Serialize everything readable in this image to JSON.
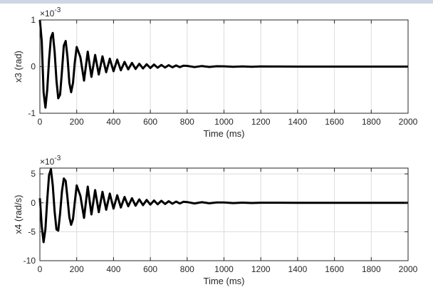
{
  "colors": {
    "trace": "#000000",
    "grid": "#dcdcdc",
    "axis": "#262626",
    "background": "#ffffff"
  },
  "chart_data": [
    {
      "type": "line",
      "ylabel": "x3 (rad)",
      "xlabel": "Time (ms)",
      "exponent": "×10",
      "exponent_power": "-3",
      "xlim": [
        0,
        2000
      ],
      "ylim": [
        -1,
        1
      ],
      "grid": true,
      "xticks": [
        0,
        200,
        400,
        600,
        800,
        1000,
        1200,
        1400,
        1600,
        1800,
        2000
      ],
      "yticks": [
        -1,
        0,
        1
      ],
      "xtick_labels": [
        "0",
        "200",
        "400",
        "600",
        "800",
        "1000",
        "1200",
        "1400",
        "1600",
        "1800",
        "2000"
      ],
      "ytick_labels": [
        "-1",
        "0",
        "1"
      ],
      "series": [
        {
          "x": [
            0,
            10,
            20,
            30,
            40,
            50,
            60,
            70,
            80,
            90,
            100,
            110,
            120,
            130,
            140,
            150,
            160,
            170,
            180,
            190,
            200,
            220,
            240,
            260,
            280,
            300,
            320,
            340,
            360,
            380,
            400,
            420,
            440,
            460,
            480,
            500,
            520,
            540,
            560,
            580,
            600,
            620,
            640,
            660,
            680,
            700,
            720,
            740,
            760,
            780,
            800,
            840,
            880,
            920,
            960,
            1000,
            1050,
            1100,
            1150,
            1200,
            1300,
            1400,
            1600,
            1800,
            2000
          ],
          "y": [
            1.0,
            0.55,
            -0.55,
            -0.88,
            -0.5,
            0.15,
            0.62,
            0.72,
            0.32,
            -0.3,
            -0.68,
            -0.6,
            -0.1,
            0.45,
            0.55,
            0.2,
            -0.35,
            -0.55,
            -0.35,
            0.1,
            0.42,
            0.2,
            -0.3,
            0.32,
            -0.22,
            0.25,
            -0.17,
            0.22,
            -0.12,
            0.17,
            -0.1,
            0.15,
            -0.08,
            0.1,
            -0.06,
            0.08,
            -0.05,
            0.06,
            -0.04,
            0.05,
            -0.03,
            0.045,
            -0.025,
            0.035,
            -0.02,
            0.03,
            -0.015,
            0.025,
            -0.012,
            0.02,
            0.015,
            -0.01,
            0.012,
            -0.008,
            0.008,
            0.006,
            -0.005,
            0.004,
            -0.003,
            0.003,
            0.002,
            0.0,
            0.0,
            0.0,
            0.0
          ]
        }
      ]
    },
    {
      "type": "line",
      "ylabel": "x4 (rad/s)",
      "xlabel": "Time (ms)",
      "exponent": "×10",
      "exponent_power": "-3",
      "xlim": [
        0,
        2000
      ],
      "ylim": [
        -10,
        6
      ],
      "grid": true,
      "xticks": [
        0,
        200,
        400,
        600,
        800,
        1000,
        1200,
        1400,
        1600,
        1800,
        2000
      ],
      "yticks": [
        -10,
        -5,
        0,
        5
      ],
      "xtick_labels": [
        "0",
        "200",
        "400",
        "600",
        "800",
        "1000",
        "1200",
        "1400",
        "1600",
        "1800",
        "2000"
      ],
      "ytick_labels": [
        "-10",
        "-5",
        "0",
        "5"
      ],
      "series": [
        {
          "x": [
            0,
            10,
            20,
            30,
            40,
            50,
            60,
            70,
            80,
            90,
            100,
            110,
            120,
            130,
            140,
            150,
            160,
            170,
            180,
            190,
            200,
            220,
            240,
            260,
            280,
            300,
            320,
            340,
            360,
            380,
            400,
            420,
            440,
            460,
            480,
            500,
            520,
            540,
            560,
            580,
            600,
            620,
            640,
            660,
            680,
            700,
            720,
            740,
            760,
            780,
            800,
            840,
            880,
            920,
            960,
            1000,
            1050,
            1100,
            1150,
            1200,
            1300,
            1400,
            1600,
            1800,
            2000
          ],
          "y": [
            0.8,
            -4.0,
            -6.8,
            -4.5,
            0.5,
            4.8,
            5.8,
            3.0,
            -1.5,
            -4.6,
            -4.8,
            -1.8,
            2.0,
            4.2,
            3.8,
            0.8,
            -2.5,
            -3.8,
            -2.8,
            0.2,
            3.0,
            1.2,
            -2.6,
            2.8,
            -2.0,
            2.2,
            -1.6,
            1.9,
            -1.2,
            1.6,
            -1.0,
            1.3,
            -0.8,
            1.0,
            -0.6,
            0.8,
            -0.5,
            0.6,
            -0.4,
            0.5,
            -0.3,
            0.4,
            -0.25,
            0.35,
            -0.2,
            0.28,
            -0.15,
            0.22,
            -0.12,
            0.18,
            0.13,
            -0.1,
            0.1,
            -0.08,
            0.07,
            0.05,
            -0.04,
            0.03,
            -0.025,
            0.02,
            0.015,
            0.0,
            0.0,
            0.0,
            0.0
          ]
        }
      ]
    }
  ]
}
